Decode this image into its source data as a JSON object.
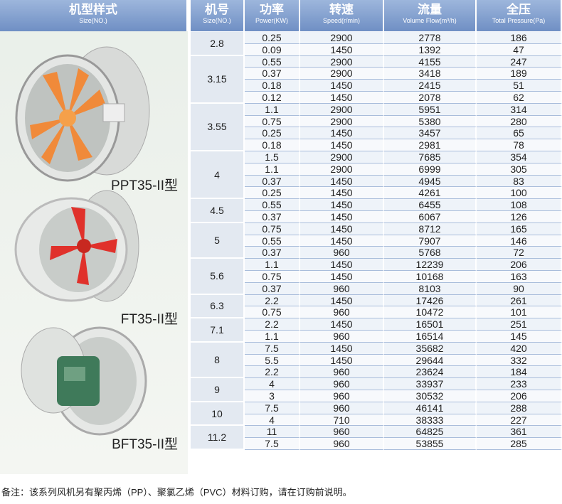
{
  "left": {
    "header": {
      "title": "机型样式",
      "subtitle": "Size(NO.)"
    },
    "models": [
      "PPT35-II型",
      "FT35-II型",
      "BFT35-II型"
    ]
  },
  "table": {
    "columns": [
      {
        "title": "机号",
        "subtitle": "Size(NO.)"
      },
      {
        "title": "功率",
        "subtitle": "Power(KW)"
      },
      {
        "title": "转速",
        "subtitle": "Speed(r/min)"
      },
      {
        "title": "流量",
        "subtitle": "Volume Flow(m³/h)"
      },
      {
        "title": "全压",
        "subtitle": "Total Pressure(Pa)"
      }
    ],
    "groups": [
      {
        "size": "2.8",
        "rows": [
          [
            "0.25",
            "2900",
            "2778",
            "186"
          ],
          [
            "0.09",
            "1450",
            "1392",
            "47"
          ]
        ]
      },
      {
        "size": "3.15",
        "rows": [
          [
            "0.55",
            "2900",
            "4155",
            "247"
          ],
          [
            "0.37",
            "2900",
            "3418",
            "189"
          ],
          [
            "0.18",
            "1450",
            "2415",
            "51"
          ],
          [
            "0.12",
            "1450",
            "2078",
            "62"
          ]
        ]
      },
      {
        "size": "3.55",
        "rows": [
          [
            "1.1",
            "2900",
            "5951",
            "314"
          ],
          [
            "0.75",
            "2900",
            "5380",
            "280"
          ],
          [
            "0.25",
            "1450",
            "3457",
            "65"
          ],
          [
            "0.18",
            "1450",
            "2981",
            "78"
          ]
        ]
      },
      {
        "size": "4",
        "rows": [
          [
            "1.5",
            "2900",
            "7685",
            "354"
          ],
          [
            "1.1",
            "2900",
            "6999",
            "305"
          ],
          [
            "0.37",
            "1450",
            "4945",
            "83"
          ],
          [
            "0.25",
            "1450",
            "4261",
            "100"
          ]
        ]
      },
      {
        "size": "4.5",
        "rows": [
          [
            "0.55",
            "1450",
            "6455",
            "108"
          ],
          [
            "0.37",
            "1450",
            "6067",
            "126"
          ]
        ]
      },
      {
        "size": "5",
        "rows": [
          [
            "0.75",
            "1450",
            "8712",
            "165"
          ],
          [
            "0.55",
            "1450",
            "7907",
            "146"
          ],
          [
            "0.37",
            "960",
            "5768",
            "72"
          ]
        ]
      },
      {
        "size": "5.6",
        "rows": [
          [
            "1.1",
            "1450",
            "12239",
            "206"
          ],
          [
            "0.75",
            "1450",
            "10168",
            "163"
          ],
          [
            "0.37",
            "960",
            "8103",
            "90"
          ]
        ]
      },
      {
        "size": "6.3",
        "rows": [
          [
            "2.2",
            "1450",
            "17426",
            "261"
          ],
          [
            "0.75",
            "960",
            "10472",
            "101"
          ]
        ]
      },
      {
        "size": "7.1",
        "rows": [
          [
            "2.2",
            "1450",
            "16501",
            "251"
          ],
          [
            "1.1",
            "960",
            "16514",
            "145"
          ]
        ]
      },
      {
        "size": "8",
        "rows": [
          [
            "7.5",
            "1450",
            "35682",
            "420"
          ],
          [
            "5.5",
            "1450",
            "29644",
            "332"
          ],
          [
            "2.2",
            "960",
            "23624",
            "184"
          ]
        ]
      },
      {
        "size": "9",
        "rows": [
          [
            "4",
            "960",
            "33937",
            "233"
          ],
          [
            "3",
            "960",
            "30532",
            "206"
          ]
        ]
      },
      {
        "size": "10",
        "rows": [
          [
            "7.5",
            "960",
            "46141",
            "288"
          ],
          [
            "4",
            "710",
            "38333",
            "227"
          ]
        ]
      },
      {
        "size": "11.2",
        "rows": [
          [
            "11",
            "960",
            "64825",
            "361"
          ],
          [
            "7.5",
            "960",
            "53855",
            "285"
          ]
        ]
      }
    ]
  },
  "note": "备注：该系列风机另有聚丙烯（PP）、聚氯乙烯（PVC）材料订购，请在订购前说明。"
}
